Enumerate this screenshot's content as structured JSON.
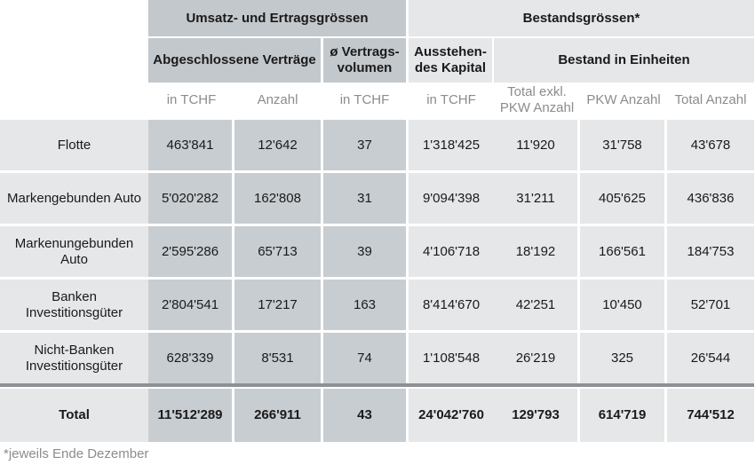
{
  "header": {
    "group1": "Umsatz- und Ertragsgrössen",
    "group2": "Bestandsgrössen*",
    "abgeschlossene": "Abgeschlossene Verträge",
    "vertragsvolumen": "ø Vertrags-volumen",
    "ausstehendes": "Ausstehen-des Kapital",
    "bestand": "Bestand in Einheiten"
  },
  "units": {
    "c1": "in TCHF",
    "c2": "Anzahl",
    "c3": "in TCHF",
    "c4": "in TCHF",
    "c5": "Total exkl. PKW Anzahl",
    "c6": "PKW Anzahl",
    "c7": "Total Anzahl"
  },
  "rows": [
    {
      "label": "Flotte",
      "v": [
        "463'841",
        "12'642",
        "37",
        "1'318'425",
        "11'920",
        "31'758",
        "43'678"
      ]
    },
    {
      "label": "Markengebunden Auto",
      "v": [
        "5'020'282",
        "162'808",
        "31",
        "9'094'398",
        "31'211",
        "405'625",
        "436'836"
      ]
    },
    {
      "label": "Markenungebunden Auto",
      "v": [
        "2'595'286",
        "65'713",
        "39",
        "4'106'718",
        "18'192",
        "166'561",
        "184'753"
      ]
    },
    {
      "label": "Banken Investitionsgüter",
      "v": [
        "2'804'541",
        "17'217",
        "163",
        "8'414'670",
        "42'251",
        "10'450",
        "52'701"
      ]
    },
    {
      "label": "Nicht-Banken Investitionsgüter",
      "v": [
        "628'339",
        "8'531",
        "74",
        "1'108'548",
        "26'219",
        "325",
        "26'544"
      ]
    }
  ],
  "total": {
    "label": "Total",
    "v": [
      "11'512'289",
      "266'911",
      "43",
      "24'042'760",
      "129'793",
      "614'719",
      "744'512"
    ]
  },
  "footnote": "*jeweils Ende Dezember"
}
